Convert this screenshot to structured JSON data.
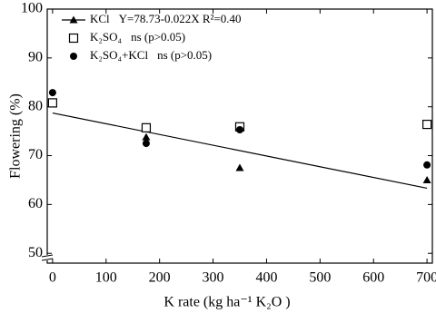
{
  "chart_data": {
    "type": "scatter",
    "x_label": "K rate (kg ha⁻¹ K₂O )",
    "y_label": "Flowering (%)",
    "xlim": [
      -10,
      710
    ],
    "xticks": [
      0,
      100,
      200,
      300,
      400,
      500,
      600,
      700
    ],
    "ylim": [
      48,
      100
    ],
    "yticks": [
      50,
      60,
      70,
      80,
      90,
      100
    ],
    "legend": "top-left",
    "series": [
      {
        "name": "KCl",
        "marker": "triangle",
        "color": "#000000",
        "annotation": "Y=78.73-0.022X   R²=0.40",
        "x": [
          0,
          175,
          350,
          700
        ],
        "values": [
          80.5,
          73.8,
          67.5,
          65.0
        ]
      },
      {
        "name": "K₂SO₄",
        "marker": "square",
        "color": "#000000",
        "annotation": "ns (p>0.05)",
        "x": [
          0,
          175,
          350,
          700
        ],
        "values": [
          80.8,
          75.7,
          75.9,
          76.4
        ]
      },
      {
        "name": "K₂SO₄+KCl",
        "marker": "circle",
        "color": "#000000",
        "annotation": "ns (p>0.05)",
        "x": [
          0,
          175,
          350,
          700
        ],
        "values": [
          82.9,
          72.5,
          75.3,
          68.1
        ]
      }
    ],
    "fit": {
      "x": [
        0,
        700
      ],
      "values": [
        78.73,
        63.33
      ],
      "color": "#000000"
    }
  }
}
